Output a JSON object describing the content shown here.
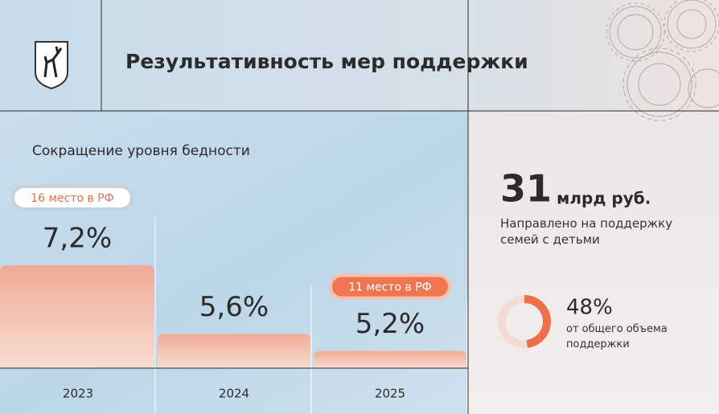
{
  "header": {
    "title": "Результативность мер поддержки"
  },
  "chart_data": {
    "type": "bar",
    "subtitle": "Сокращение уровня бедности",
    "categories": [
      "2023",
      "2024",
      "2025"
    ],
    "values": [
      7.2,
      5.6,
      5.2
    ],
    "value_labels": [
      "7,2%",
      "5,6%",
      "5,2%"
    ],
    "annotations": [
      "16 место в РФ",
      null,
      "11 место в РФ"
    ],
    "color": "#f2b3a0",
    "ylim": [
      4.8,
      9.3
    ]
  },
  "side": {
    "amount": "31",
    "unit": "млрд руб.",
    "description": "Направлено на поддержку семей с детьми",
    "donut": {
      "value": 48,
      "label": "48%",
      "description": "от общего объема поддержки",
      "color": "#ee6f4c"
    }
  }
}
